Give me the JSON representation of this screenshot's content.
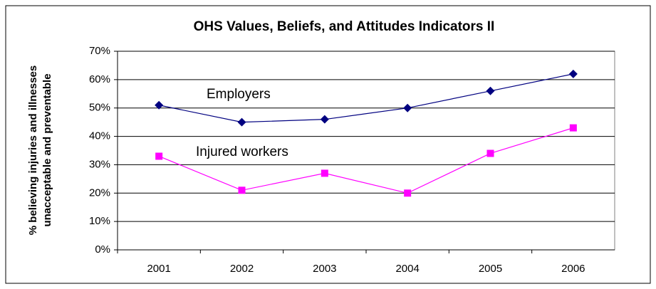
{
  "chart_data": {
    "type": "line",
    "title": "OHS Values, Beliefs, and Attitudes Indicators II",
    "ylabel": [
      "% believing injuries and illnesses",
      "unacceptable and preventable"
    ],
    "categories": [
      "2001",
      "2002",
      "2003",
      "2004",
      "2005",
      "2006"
    ],
    "series": [
      {
        "name": "Employers",
        "color": "#000080",
        "marker": "diamond",
        "values": [
          51,
          45,
          46,
          50,
          56,
          62
        ]
      },
      {
        "name": "Injured workers",
        "color": "#ff00ff",
        "marker": "square",
        "values": [
          33,
          21,
          27,
          20,
          34,
          43
        ]
      }
    ],
    "ylim": [
      0,
      70
    ],
    "yticks": [
      {
        "value": 0,
        "label": "0%"
      },
      {
        "value": 10,
        "label": "10%"
      },
      {
        "value": 20,
        "label": "20%"
      },
      {
        "value": 30,
        "label": "30%"
      },
      {
        "value": 40,
        "label": "40%"
      },
      {
        "value": 50,
        "label": "50%"
      },
      {
        "value": 60,
        "label": "60%"
      },
      {
        "value": 70,
        "label": "70%"
      }
    ],
    "grid": true
  }
}
